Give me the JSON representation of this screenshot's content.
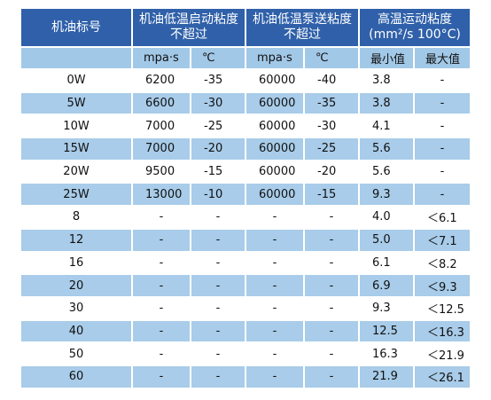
{
  "header": {
    "first": "机油标号",
    "groups": [
      [
        "机油低温启动粘度",
        "不超过"
      ],
      [
        "机油低温泵送粘度",
        "不超过"
      ],
      [
        "高温运动粘度",
        "(mm²/s 100°C)"
      ]
    ]
  },
  "subheader": [
    "mpa·s",
    "℃",
    "mpa·s",
    "℃",
    "最小值",
    "最大值"
  ],
  "rows": [
    [
      "0W",
      "6200",
      "-35",
      "60000",
      "-40",
      "3.8",
      "-"
    ],
    [
      "5W",
      "6600",
      "-30",
      "60000",
      "-35",
      "3.8",
      "-"
    ],
    [
      "10W",
      "7000",
      "-25",
      "60000",
      "-30",
      "4.1",
      "-"
    ],
    [
      "15W",
      "7000",
      "-20",
      "60000",
      "-25",
      "5.6",
      "-"
    ],
    [
      "20W",
      "9500",
      "-15",
      "60000",
      "-20",
      "5.6",
      "-"
    ],
    [
      "25W",
      "13000",
      "-10",
      "60000",
      "-15",
      "9.3",
      "-"
    ],
    [
      "8",
      "-",
      "-",
      "-",
      "-",
      "4.0",
      "＜6.1"
    ],
    [
      "12",
      "-",
      "-",
      "-",
      "-",
      "5.0",
      "＜7.1"
    ],
    [
      "16",
      "-",
      "-",
      "-",
      "-",
      "6.1",
      "＜8.2"
    ],
    [
      "20",
      "-",
      "-",
      "-",
      "-",
      "6.9",
      "＜9.3"
    ],
    [
      "30",
      "-",
      "-",
      "-",
      "-",
      "9.3",
      "＜12.5"
    ],
    [
      "40",
      "-",
      "-",
      "-",
      "-",
      "12.5",
      "＜16.3"
    ],
    [
      "50",
      "-",
      "-",
      "-",
      "-",
      "16.3",
      "＜21.9"
    ],
    [
      "60",
      "-",
      "-",
      "-",
      "-",
      "21.9",
      "＜26.1"
    ]
  ]
}
